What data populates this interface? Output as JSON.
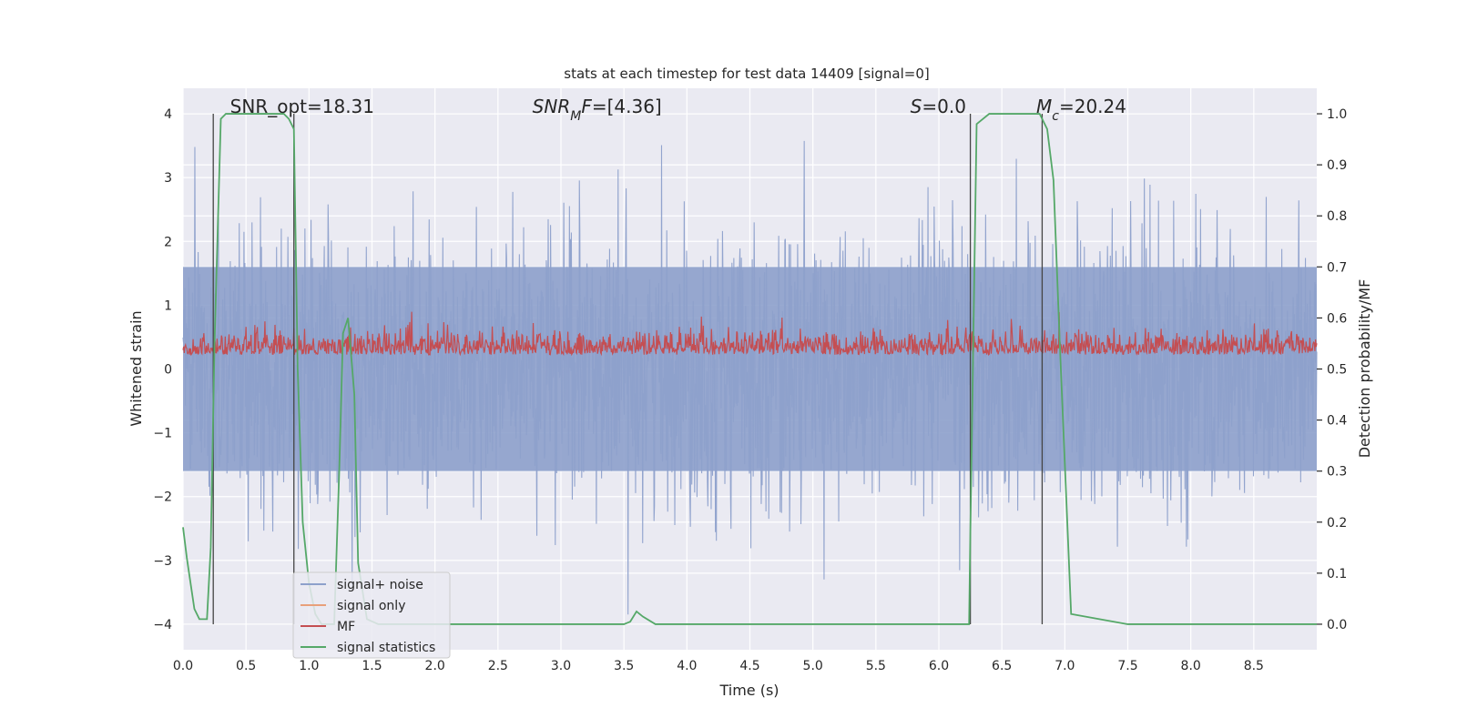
{
  "chart_data": {
    "type": "line",
    "title": "stats at each timestep for test data 14409 [signal=0]",
    "xlabel": "Time (s)",
    "ylabel": "Whitened strain",
    "y2label": "Detection probability/MF",
    "xlim": [
      0.0,
      9.0
    ],
    "ylim": [
      -4.4,
      4.4
    ],
    "y2lim": [
      -0.05,
      1.05
    ],
    "xticks": [
      0.0,
      0.5,
      1.0,
      1.5,
      2.0,
      2.5,
      3.0,
      3.5,
      4.0,
      4.5,
      5.0,
      5.5,
      6.0,
      6.5,
      7.0,
      7.5,
      8.0,
      8.5
    ],
    "xtick_labels": [
      "0.0",
      "0.5",
      "1.0",
      "1.5",
      "2.0",
      "2.5",
      "3.0",
      "3.5",
      "4.0",
      "4.5",
      "5.0",
      "5.5",
      "6.0",
      "6.5",
      "7.0",
      "7.5",
      "8.0",
      "8.5"
    ],
    "yticks": [
      -4,
      -3,
      -2,
      -1,
      0,
      1,
      2,
      3,
      4
    ],
    "ytick_labels": [
      "−4",
      "−3",
      "−2",
      "−1",
      "0",
      "1",
      "2",
      "3",
      "4"
    ],
    "y2ticks": [
      0.0,
      0.1,
      0.2,
      0.3,
      0.4,
      0.5,
      0.6,
      0.7,
      0.8,
      0.9,
      1.0
    ],
    "y2tick_labels": [
      "0.0",
      "0.1",
      "0.2",
      "0.3",
      "0.4",
      "0.5",
      "0.6",
      "0.7",
      "0.8",
      "0.9",
      "1.0"
    ],
    "annotations": [
      {
        "text": "SNR_opt=18.31",
        "x": 0.2
      },
      {
        "text": "SNR_MF=[4.36]",
        "x": 2.6
      },
      {
        "text": "S=0.0",
        "x": 5.6
      },
      {
        "text": "M_c=20.24",
        "x": 6.6
      }
    ],
    "vertical_lines_x": [
      0.24,
      0.88,
      6.25,
      6.82
    ],
    "series": [
      {
        "name": "signal+ noise",
        "axis": "left",
        "color": "#8da0cb",
        "kind": "noise",
        "amplitude_envelope": [
          -4.0,
          4.0
        ],
        "dense_band": [
          -1.6,
          1.6
        ]
      },
      {
        "name": "signal only",
        "axis": "left",
        "color": "#e8a07a",
        "kind": "line",
        "values": []
      },
      {
        "name": "MF",
        "axis": "right",
        "color": "#c44e52",
        "kind": "noise",
        "mean": 0.54,
        "range": [
          0.5,
          0.62
        ]
      },
      {
        "name": "signal statistics",
        "axis": "right",
        "color": "#55a868",
        "kind": "line",
        "x": [
          0.0,
          0.03,
          0.09,
          0.13,
          0.19,
          0.22,
          0.25,
          0.3,
          0.34,
          0.4,
          0.5,
          0.6,
          0.7,
          0.8,
          0.84,
          0.88,
          0.91,
          0.95,
          1.0,
          1.05,
          1.1,
          1.15,
          1.2,
          1.24,
          1.27,
          1.31,
          1.36,
          1.39,
          1.46,
          1.55,
          1.7,
          2.0,
          2.5,
          3.0,
          3.5,
          3.55,
          3.6,
          3.65,
          3.75,
          4.0,
          4.5,
          5.0,
          5.5,
          6.0,
          6.2,
          6.24,
          6.25,
          6.3,
          6.4,
          6.6,
          6.8,
          6.86,
          6.91,
          6.96,
          7.05,
          7.5,
          8.0,
          8.5,
          9.0
        ],
        "values": [
          0.19,
          0.13,
          0.03,
          0.01,
          0.01,
          0.15,
          0.55,
          0.99,
          1.0,
          1.0,
          1.0,
          1.0,
          1.0,
          1.0,
          0.99,
          0.97,
          0.5,
          0.2,
          0.08,
          0.02,
          0.0,
          0.0,
          0.0,
          0.3,
          0.57,
          0.6,
          0.45,
          0.12,
          0.01,
          0.0,
          0.0,
          0.0,
          0.0,
          0.0,
          0.0,
          0.005,
          0.025,
          0.015,
          0.0,
          0.0,
          0.0,
          0.0,
          0.0,
          0.0,
          0.0,
          0.0,
          0.18,
          0.98,
          1.0,
          1.0,
          1.0,
          0.97,
          0.87,
          0.55,
          0.02,
          0.0,
          0.0,
          0.0,
          0.0
        ]
      }
    ],
    "legend": {
      "location": "lower-left",
      "items": [
        "signal+ noise",
        "signal only",
        "MF",
        "signal statistics"
      ]
    },
    "grid": true,
    "colors": {
      "background": "#eaeaf2",
      "grid": "#ffffff",
      "vline": "#444444"
    }
  }
}
